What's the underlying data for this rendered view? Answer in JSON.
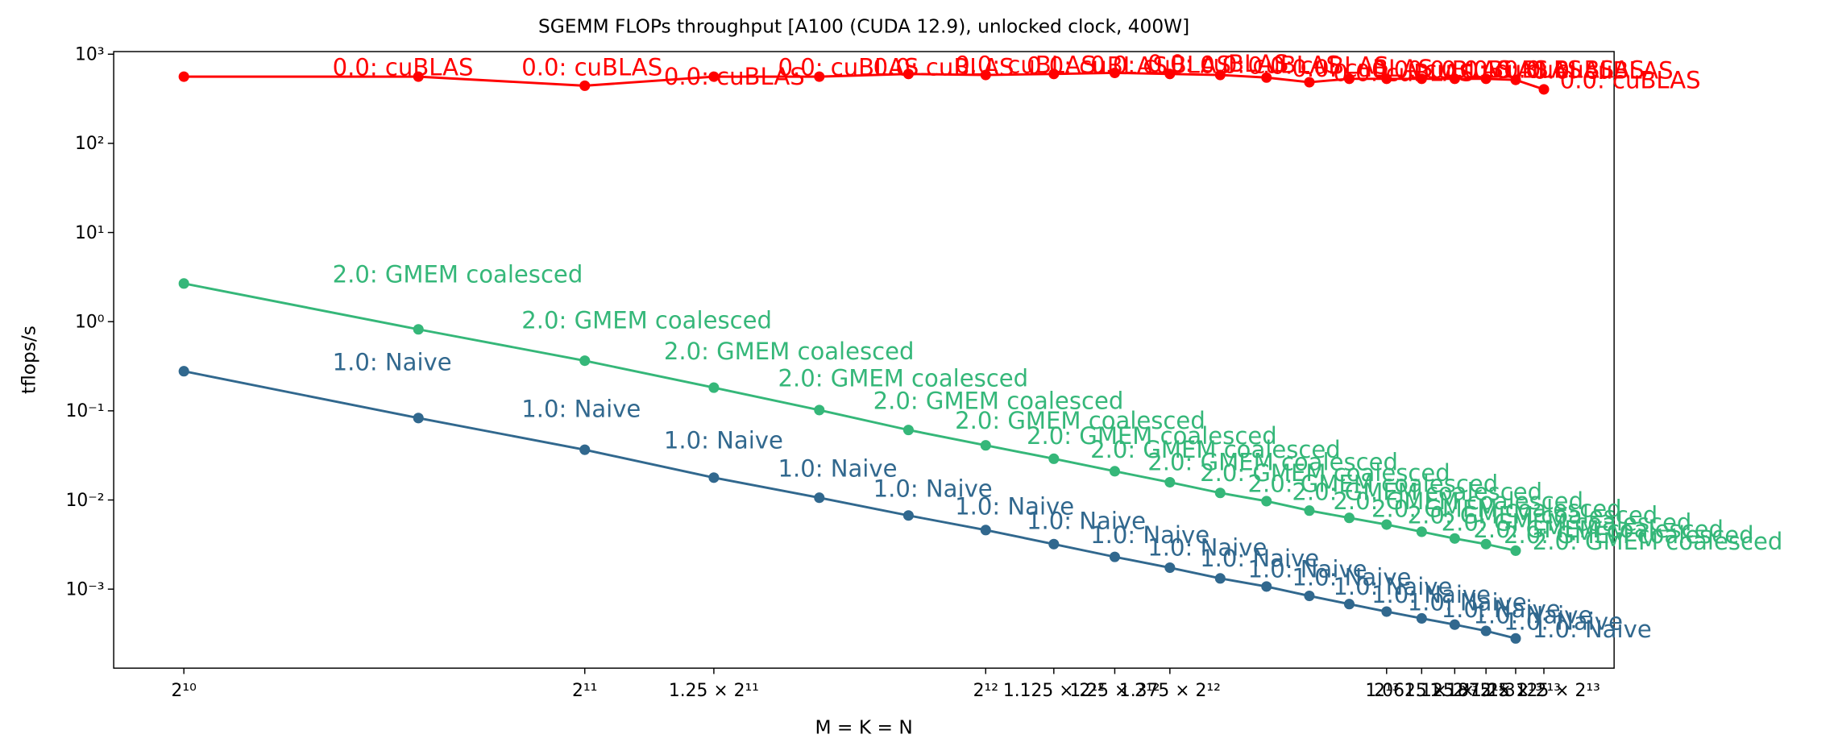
{
  "chart_data": {
    "type": "line",
    "title": "SGEMM FLOPs throughput [A100 (CUDA 12.9), unlocked clock, 400W]",
    "xlabel": "M = K = N",
    "ylabel": "tflops/s",
    "xscale": "log",
    "yscale": "log",
    "xlim": [
      907,
      12140
    ],
    "ylim": [
      0.00013,
      1070
    ],
    "xticks": [
      {
        "value": 1024,
        "label": "2¹⁰"
      },
      {
        "value": 2048,
        "label": "2¹¹"
      },
      {
        "value": 2560,
        "label": "1.25 × 2¹¹"
      },
      {
        "value": 4096,
        "label": "2¹²"
      },
      {
        "value": 4608,
        "label": "1.125 × 2¹²"
      },
      {
        "value": 5120,
        "label": "1.25 × 2¹²"
      },
      {
        "value": 5632,
        "label": "1.375 × 2¹²"
      },
      {
        "value": 8192,
        "label": "2¹³"
      },
      {
        "value": 8704,
        "label": "1.0625 × 2¹³"
      },
      {
        "value": 9216,
        "label": "1.125 × 2¹³"
      },
      {
        "value": 9728,
        "label": "1.1875 × 2¹³"
      },
      {
        "value": 10240,
        "label": "1.25 × 2¹³"
      },
      {
        "value": 10752,
        "label": "1.3125 × 2¹³"
      }
    ],
    "yticks": [
      {
        "value": 0.001,
        "label": "10⁻³"
      },
      {
        "value": 0.01,
        "label": "10⁻²"
      },
      {
        "value": 0.1,
        "label": "10⁻¹"
      },
      {
        "value": 1,
        "label": "10⁰"
      },
      {
        "value": 10,
        "label": "10¹"
      },
      {
        "value": 100,
        "label": "10²"
      },
      {
        "value": 1000,
        "label": "10³"
      }
    ],
    "series": [
      {
        "name": "0.0: cuBLAS",
        "color": "#ff0000",
        "x": [
          1024,
          1536,
          2048,
          2560,
          3072,
          3584,
          4096,
          4608,
          5120,
          5632,
          6144,
          6656,
          7168,
          7680,
          8192,
          8704,
          9216,
          9728,
          10240,
          10752
        ],
        "values": [
          560,
          560,
          443,
          560,
          560,
          600,
          585,
          600,
          617,
          600,
          585,
          547,
          485,
          530,
          530,
          530,
          530,
          530,
          515,
          403
        ]
      },
      {
        "name": "2.0: GMEM coalesced",
        "color": "#35b779",
        "x": [
          1024,
          1536,
          2048,
          2560,
          3072,
          3584,
          4096,
          4608,
          5120,
          5632,
          6144,
          6656,
          7168,
          7680,
          8192,
          8704,
          9216,
          9728,
          10240
        ],
        "values": [
          2.68,
          0.82,
          0.365,
          0.182,
          0.102,
          0.061,
          0.041,
          0.029,
          0.021,
          0.0158,
          0.012,
          0.0097,
          0.0076,
          0.0063,
          0.0053,
          0.0044,
          0.0037,
          0.0032,
          0.0027
        ]
      },
      {
        "name": "1.0: Naive",
        "color": "#31688e",
        "x": [
          1024,
          1536,
          2048,
          2560,
          3072,
          3584,
          4096,
          4608,
          5120,
          5632,
          6144,
          6656,
          7168,
          7680,
          8192,
          8704,
          9216,
          9728,
          10240
        ],
        "values": [
          0.278,
          0.083,
          0.0366,
          0.0178,
          0.0106,
          0.0067,
          0.0046,
          0.0032,
          0.0023,
          0.00174,
          0.00132,
          0.00107,
          0.00084,
          0.00068,
          0.00056,
          0.00047,
          0.0004,
          0.00034,
          0.00028
        ]
      }
    ]
  }
}
